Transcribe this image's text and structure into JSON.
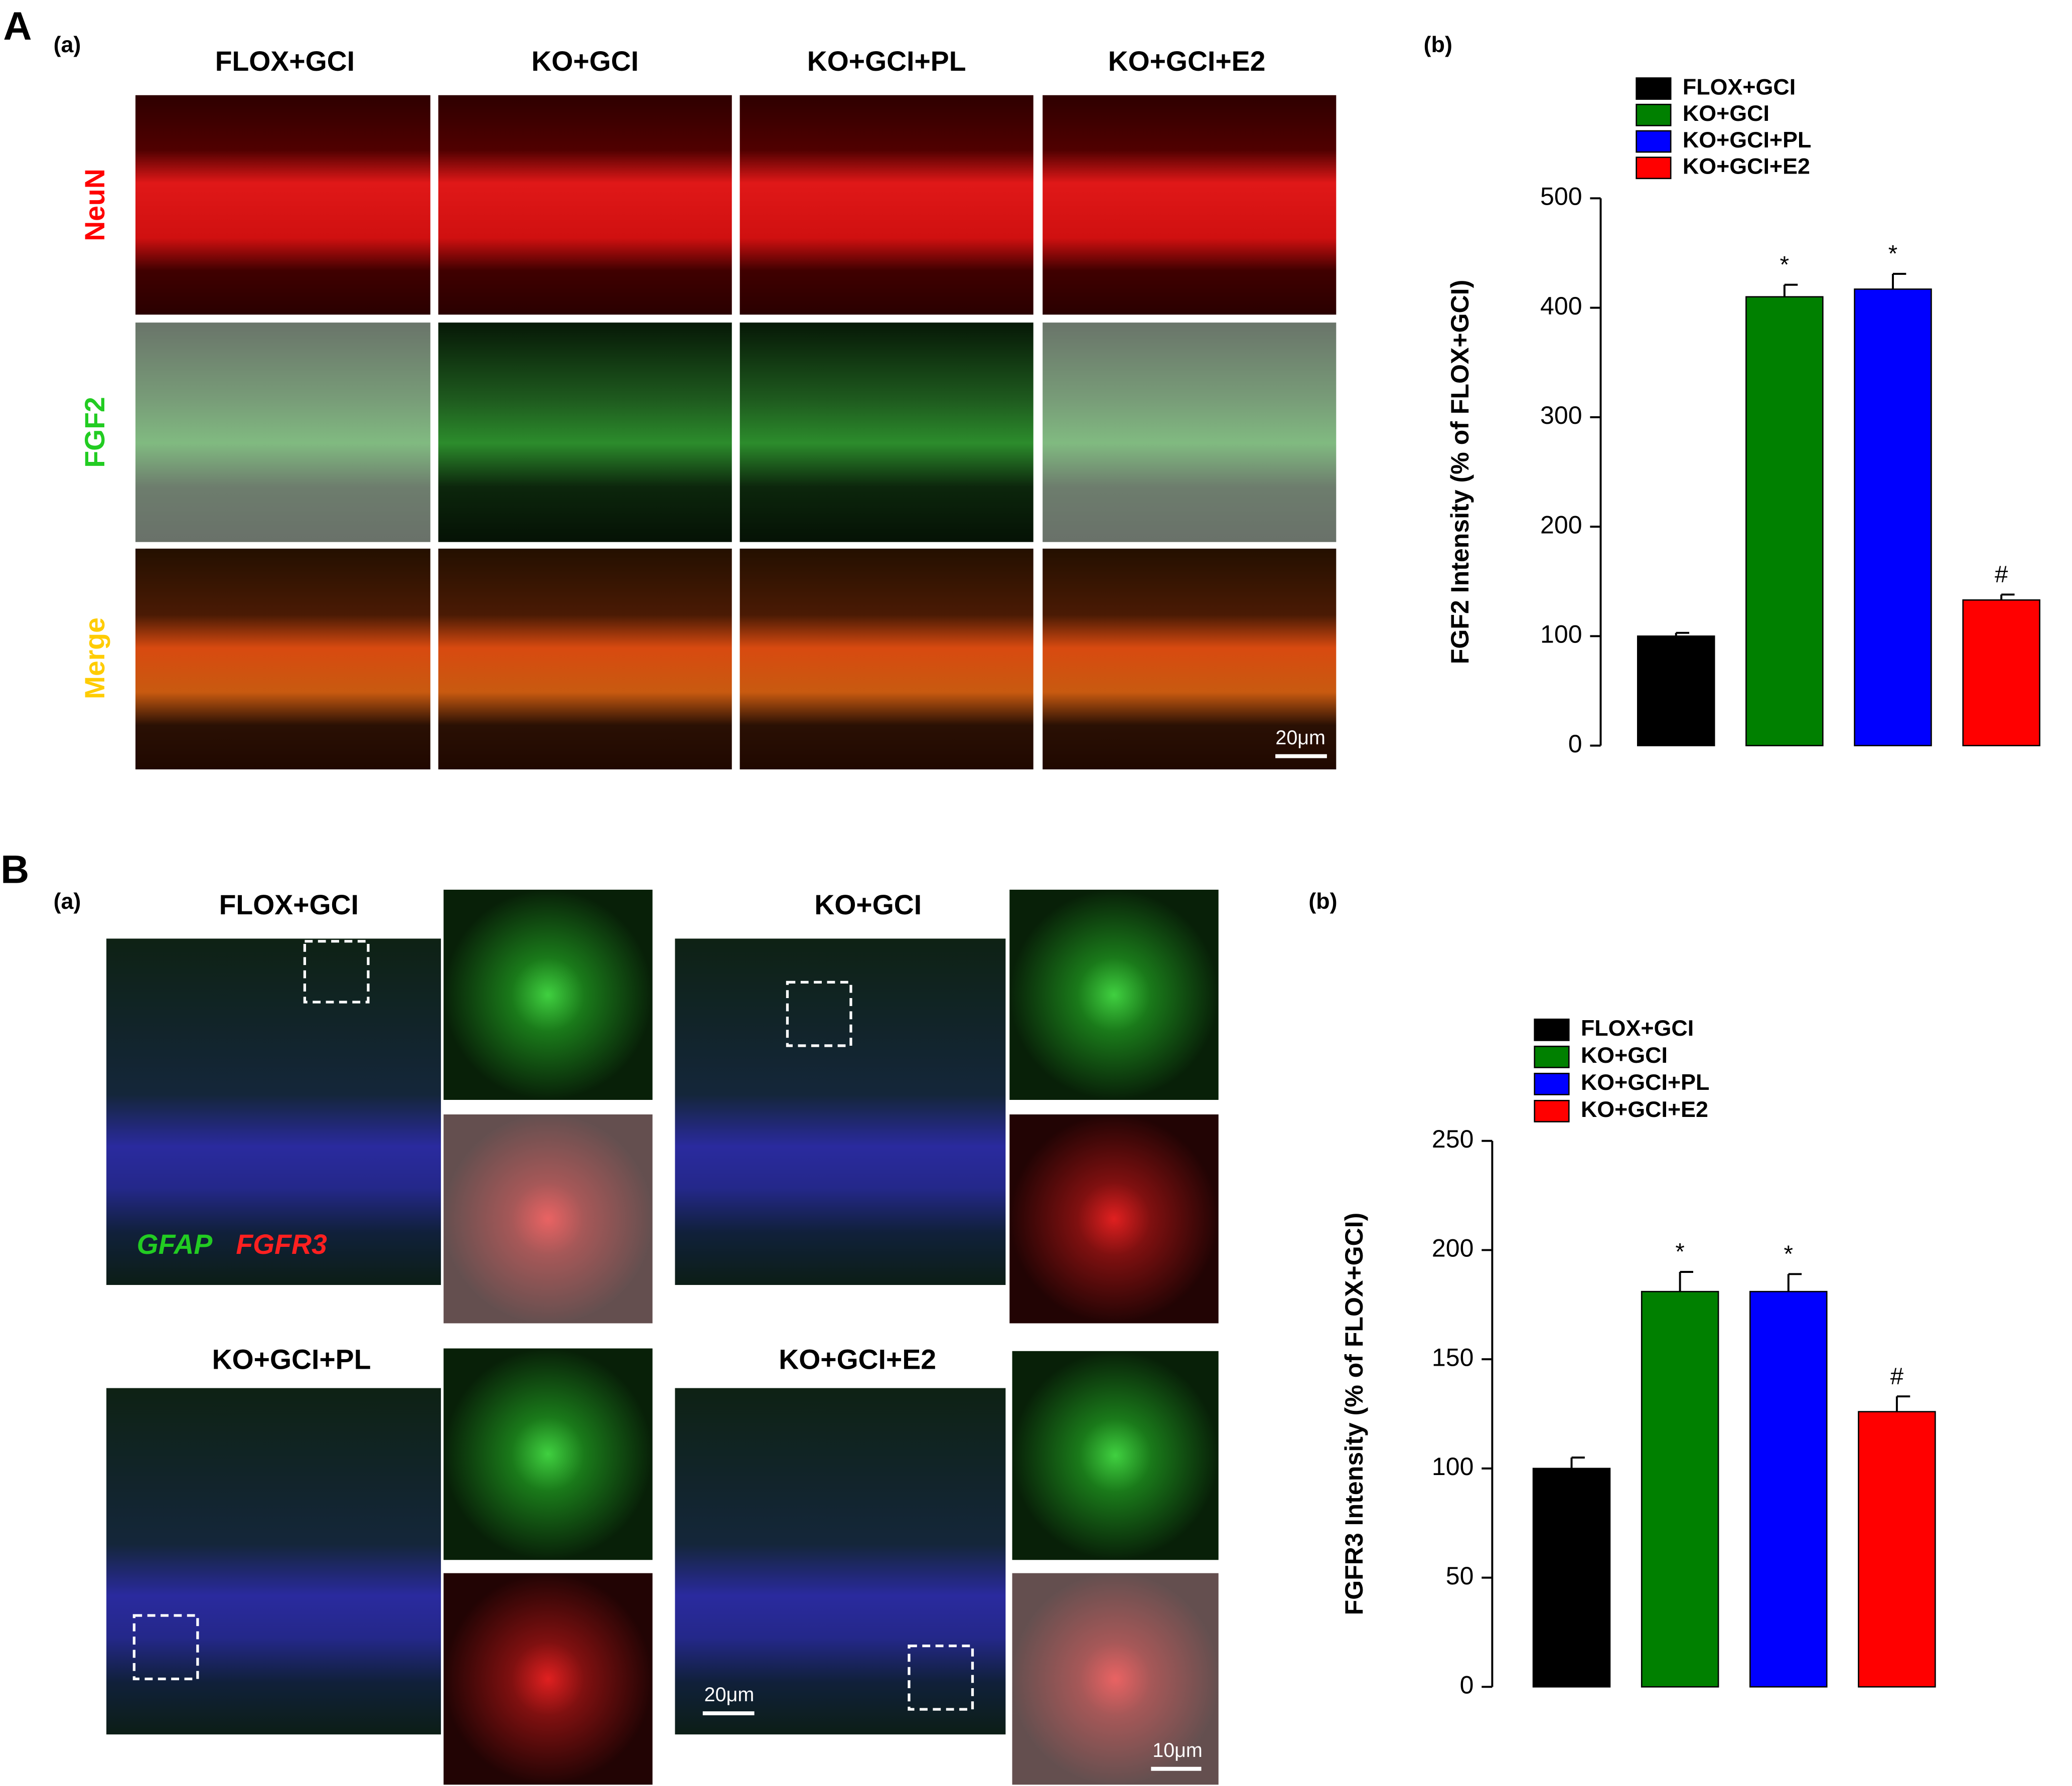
{
  "figure": {
    "panel_a_label": "A",
    "panel_a_sub": "(a)",
    "panel_a_columns": [
      "FLOX+GCI",
      "KO+GCI",
      "KO+GCI+PL",
      "KO+GCI+E2"
    ],
    "panel_a_rows": [
      "NeuN",
      "FGF2",
      "Merge"
    ],
    "panel_a_scale": "20μm",
    "panel_a_chart_label": "(b)",
    "panel_b_label": "B",
    "panel_b_sub": "(a)",
    "panel_b_groups": [
      "FLOX+GCI",
      "KO+GCI",
      "KO+GCI+PL",
      "KO+GCI+E2"
    ],
    "panel_b_stain_green": "GFAP",
    "panel_b_stain_red": "FGFR3",
    "panel_b_scale_large": "20μm",
    "panel_b_scale_inset": "10μm",
    "panel_b_chart_label": "(b)"
  },
  "chart_data": [
    {
      "type": "bar",
      "y_label": "FGF2 Intensity (% of FLOX+GCI)",
      "series": [
        {
          "name": "FLOX+GCI",
          "color": "#000000",
          "values": [
            100
          ],
          "errors": [
            3
          ]
        },
        {
          "name": "KO+GCI",
          "color": "#008000",
          "values": [
            410
          ],
          "errors": [
            11
          ],
          "annotation": "*"
        },
        {
          "name": "KO+GCI+PL",
          "color": "#0000ff",
          "values": [
            417
          ],
          "errors": [
            14
          ],
          "annotation": "*"
        },
        {
          "name": "KO+GCI+E2",
          "color": "#ff0000",
          "values": [
            133
          ],
          "errors": [
            5
          ],
          "annotation": "#"
        }
      ],
      "ylim": [
        0,
        500
      ],
      "yticks": [
        0,
        100,
        200,
        300,
        400,
        500
      ]
    },
    {
      "type": "bar",
      "y_label": "FGFR3 Intensity (% of FLOX+GCI)",
      "series": [
        {
          "name": "FLOX+GCI",
          "color": "#000000",
          "values": [
            100
          ],
          "errors": [
            5
          ]
        },
        {
          "name": "KO+GCI",
          "color": "#008000",
          "values": [
            181
          ],
          "errors": [
            9
          ],
          "annotation": "*"
        },
        {
          "name": "KO+GCI+PL",
          "color": "#0000ff",
          "values": [
            181
          ],
          "errors": [
            8
          ],
          "annotation": "*"
        },
        {
          "name": "KO+GCI+E2",
          "color": "#ff0000",
          "values": [
            126
          ],
          "errors": [
            7
          ],
          "annotation": "#"
        }
      ],
      "ylim": [
        0,
        250
      ],
      "yticks": [
        0,
        50,
        100,
        150,
        200,
        250
      ]
    }
  ]
}
